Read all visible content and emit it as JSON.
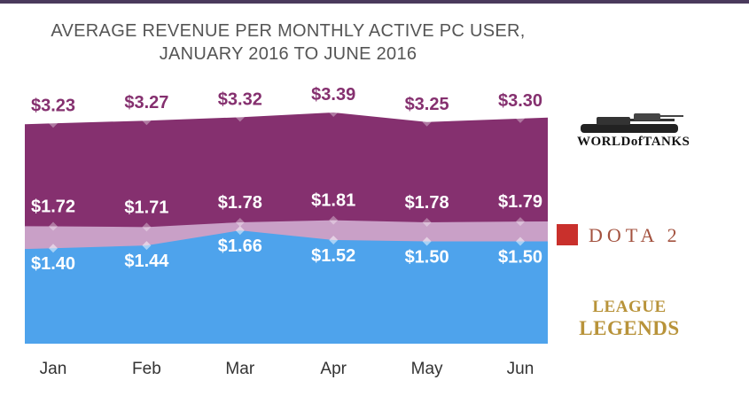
{
  "title_line1": "AVERAGE REVENUE PER MONTHLY ACTIVE PC USER,",
  "title_line2": "JANUARY 2016 TO JUNE 2016",
  "logos": {
    "world_of_tanks": "WORLDofTANKS",
    "dota2": "DOTA 2",
    "league_line1": "LEAGUE",
    "league_line2": "LEGENDS"
  },
  "colors": {
    "wot": "#85306f",
    "dota": "#c9a0c7",
    "lol": "#4ea3ec",
    "wot_label": "#85306f",
    "inner_label": "#ffffff"
  },
  "chart_data": {
    "type": "area",
    "categories": [
      "Jan",
      "Feb",
      "Mar",
      "Apr",
      "May",
      "Jun"
    ],
    "series": [
      {
        "name": "World of Tanks",
        "values": [
          3.23,
          3.27,
          3.32,
          3.39,
          3.25,
          3.3
        ],
        "labels": [
          "$3.23",
          "$3.27",
          "$3.32",
          "$3.39",
          "$3.25",
          "$3.30"
        ]
      },
      {
        "name": "Dota 2",
        "values": [
          1.72,
          1.71,
          1.78,
          1.81,
          1.78,
          1.79
        ],
        "labels": [
          "$1.72",
          "$1.71",
          "$1.78",
          "$1.81",
          "$1.78",
          "$1.79"
        ]
      },
      {
        "name": "League of Legends",
        "values": [
          1.4,
          1.44,
          1.66,
          1.52,
          1.5,
          1.5
        ],
        "labels": [
          "$1.40",
          "$1.44",
          "$1.66",
          "$1.52",
          "$1.50",
          "$1.50"
        ]
      }
    ],
    "title": "AVERAGE REVENUE PER MONTHLY ACTIVE PC USER, JANUARY 2016 TO JUNE 2016",
    "ylim": [
      0,
      3.5
    ],
    "grid": false,
    "legend": "right"
  }
}
